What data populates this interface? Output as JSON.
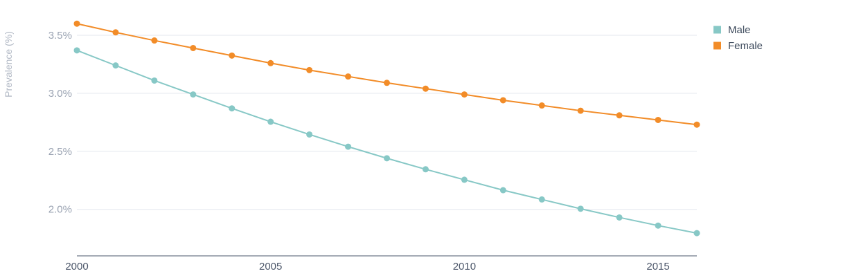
{
  "chart_data": {
    "type": "line",
    "title": "",
    "xlabel": "",
    "ylabel": "Prevalence (%)",
    "x": [
      2000,
      2001,
      2002,
      2003,
      2004,
      2005,
      2006,
      2007,
      2008,
      2009,
      2010,
      2011,
      2012,
      2013,
      2014,
      2015,
      2016
    ],
    "xlim": [
      2000,
      2016
    ],
    "ylim": [
      1.6,
      3.6
    ],
    "x_ticks": [
      "2000",
      "2005",
      "2010",
      "2015"
    ],
    "y_ticks": [
      "3.5%",
      "3.0%",
      "2.5%",
      "2.0%"
    ],
    "y_tick_values": [
      3.5,
      3.0,
      2.5,
      2.0
    ],
    "grid": true,
    "legend_position": "top-right",
    "series": [
      {
        "name": "Male",
        "color": "#87c8c6",
        "values": [
          3.37,
          3.24,
          3.11,
          2.99,
          2.87,
          2.755,
          2.645,
          2.54,
          2.44,
          2.345,
          2.255,
          2.165,
          2.085,
          2.005,
          1.93,
          1.86,
          1.795
        ]
      },
      {
        "name": "Female",
        "color": "#f28c28",
        "values": [
          3.6,
          3.525,
          3.455,
          3.39,
          3.325,
          3.26,
          3.2,
          3.145,
          3.09,
          3.04,
          2.99,
          2.94,
          2.895,
          2.85,
          2.81,
          2.77,
          2.73
        ]
      }
    ]
  }
}
